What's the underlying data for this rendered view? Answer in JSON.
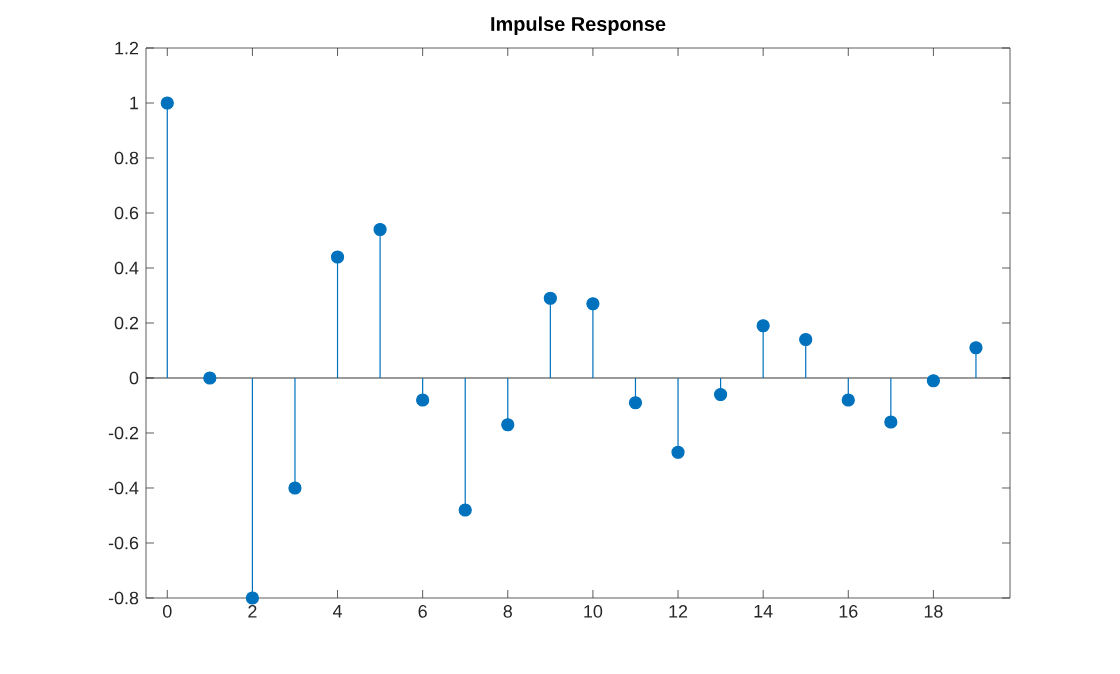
{
  "chart_data": {
    "type": "lollipop",
    "title": "Impulse Response",
    "x": [
      0,
      1,
      2,
      3,
      4,
      5,
      6,
      7,
      8,
      9,
      10,
      11,
      12,
      13,
      14,
      15,
      16,
      17,
      18,
      19
    ],
    "values": [
      1.0,
      0,
      -0.8,
      -0.4,
      0.44,
      0.54,
      -0.08,
      -0.48,
      -0.17,
      0.29,
      0.27,
      -0.09,
      -0.27,
      -0.06,
      0.19,
      0.14,
      -0.08,
      -0.16,
      -0.01,
      0.11
    ],
    "color": "#0072bd",
    "marker": "circle",
    "xlim": [
      -0.5,
      19.8
    ],
    "ylim": [
      -0.8,
      1.2
    ],
    "xticks": [
      0,
      2,
      4,
      6,
      8,
      10,
      12,
      14,
      16,
      18
    ],
    "yticks": [
      -0.8,
      -0.6,
      -0.4,
      -0.2,
      0,
      0.2,
      0.4,
      0.6,
      0.8,
      1,
      1.2
    ],
    "ref_lines": [
      {
        "axis": "y",
        "value": 0,
        "color": "#000000"
      }
    ]
  }
}
